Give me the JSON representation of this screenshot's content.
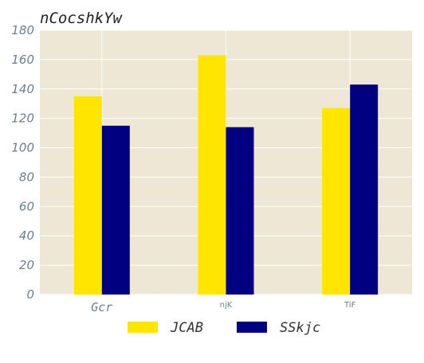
{
  "chart_data": {
    "type": "bar",
    "title": "nCocshkYw",
    "xlabel": "",
    "ylabel": "",
    "categories": [
      "Gcr",
      "njK",
      "TiF"
    ],
    "series": [
      {
        "name": "JCAB",
        "values": [
          135,
          163,
          127
        ],
        "color": "#FFE500"
      },
      {
        "name": "SSkjc",
        "values": [
          115,
          114,
          143
        ],
        "color": "#000080"
      }
    ],
    "ylim": [
      0,
      180
    ],
    "yticks": [
      0,
      20,
      40,
      60,
      80,
      100,
      120,
      140,
      160,
      180
    ],
    "grid": true,
    "legend": "bottom-center",
    "plot_background": "#EFE7D5",
    "grid_color": "#FFFFFF"
  }
}
